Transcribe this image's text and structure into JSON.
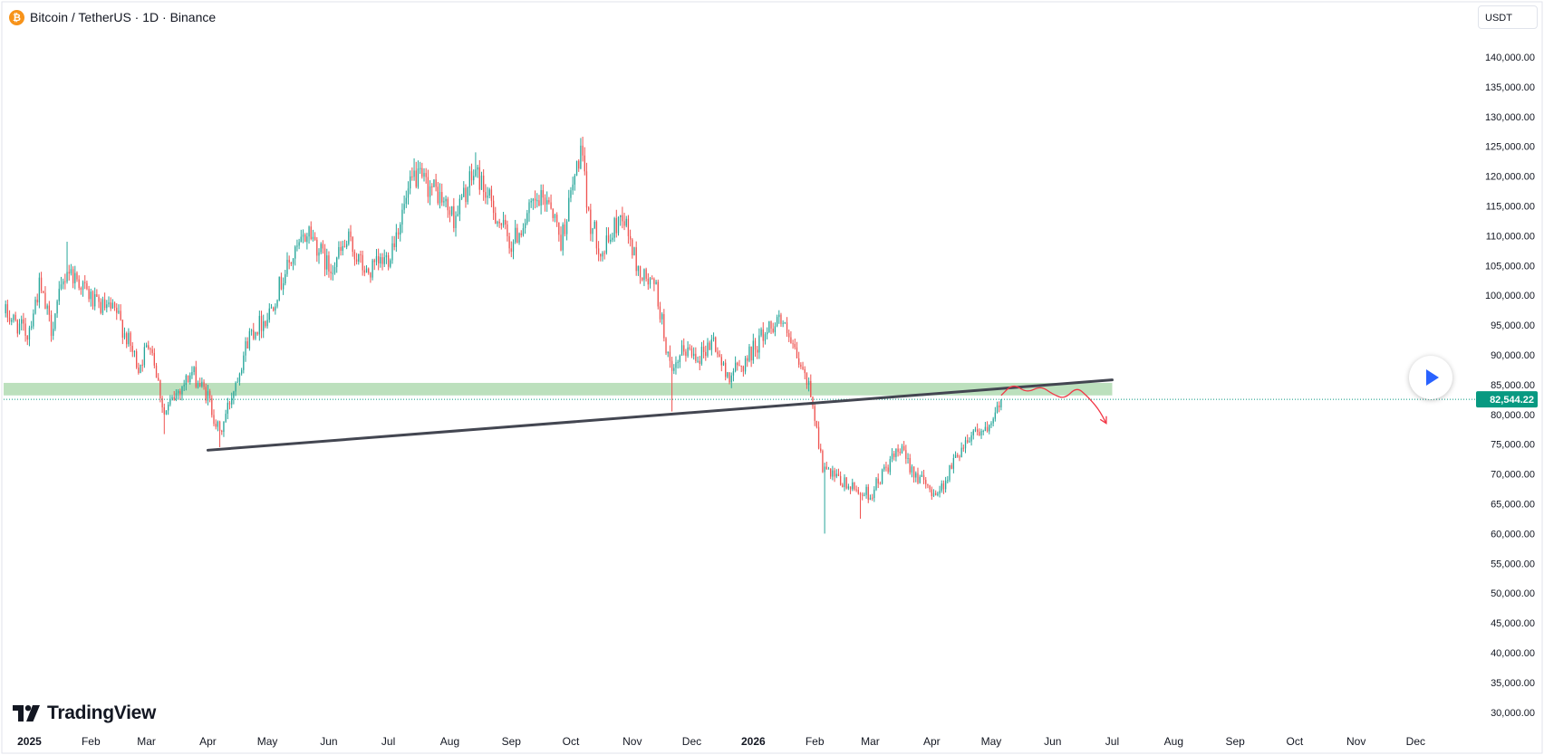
{
  "header": {
    "title": "Bitcoin / TetherUS · 1D · Binance",
    "coin_symbol": "₿"
  },
  "currency_selector": "USDT",
  "logo_text": "TradingView",
  "chart_data": {
    "type": "candlestick",
    "symbol": "Bitcoin / TetherUS",
    "interval": "1D",
    "exchange": "Binance",
    "y_axis": {
      "ticks": [
        "140,000.00",
        "135,000.00",
        "130,000.00",
        "125,000.00",
        "120,000.00",
        "115,000.00",
        "110,000.00",
        "105,000.00",
        "100,000.00",
        "95,000.00",
        "90,000.00",
        "85,000.00",
        "80,000.00",
        "75,000.00",
        "70,000.00",
        "65,000.00",
        "60,000.00",
        "55,000.00",
        "50,000.00",
        "45,000.00",
        "40,000.00",
        "35,000.00",
        "30,000.00"
      ],
      "range": [
        28000,
        143500
      ]
    },
    "x_axis": {
      "ticks": [
        {
          "label": "2025",
          "date": "2025-01-01",
          "bold": true
        },
        {
          "label": "Feb",
          "date": "2025-02-01"
        },
        {
          "label": "Mar",
          "date": "2025-03-01"
        },
        {
          "label": "Apr",
          "date": "2025-04-01"
        },
        {
          "label": "May",
          "date": "2025-05-01"
        },
        {
          "label": "Jun",
          "date": "2025-06-01"
        },
        {
          "label": "Jul",
          "date": "2025-07-01"
        },
        {
          "label": "Aug",
          "date": "2025-08-01"
        },
        {
          "label": "Sep",
          "date": "2025-09-01"
        },
        {
          "label": "Oct",
          "date": "2025-10-01"
        },
        {
          "label": "Nov",
          "date": "2025-11-01"
        },
        {
          "label": "Dec",
          "date": "2025-12-01"
        },
        {
          "label": "2026",
          "date": "2026-01-01",
          "bold": true
        },
        {
          "label": "Feb",
          "date": "2026-02-01"
        },
        {
          "label": "Mar",
          "date": "2026-03-01"
        },
        {
          "label": "Apr",
          "date": "2026-04-01"
        },
        {
          "label": "May",
          "date": "2026-05-01"
        },
        {
          "label": "Jun",
          "date": "2026-06-01"
        },
        {
          "label": "Jul",
          "date": "2026-07-01"
        },
        {
          "label": "Aug",
          "date": "2026-08-01"
        },
        {
          "label": "Sep",
          "date": "2026-09-01"
        },
        {
          "label": "Oct",
          "date": "2026-10-01"
        },
        {
          "label": "Nov",
          "date": "2026-11-01"
        },
        {
          "label": "Dec",
          "date": "2026-12-01"
        }
      ],
      "range": [
        "2024-12-19",
        "2026-12-31"
      ]
    },
    "close_path": [
      [
        "2024-12-20",
        97000
      ],
      [
        "2024-12-31",
        93500
      ],
      [
        "2025-01-06",
        101500
      ],
      [
        "2025-01-12",
        94500
      ],
      [
        "2025-01-20",
        104500
      ],
      [
        "2025-01-27",
        102000
      ],
      [
        "2025-02-03",
        98500
      ],
      [
        "2025-02-14",
        97000
      ],
      [
        "2025-02-25",
        88000
      ],
      [
        "2025-03-03",
        92500
      ],
      [
        "2025-03-10",
        80000
      ],
      [
        "2025-03-17",
        84000
      ],
      [
        "2025-03-24",
        87000
      ],
      [
        "2025-04-01",
        83000
      ],
      [
        "2025-04-07",
        76500
      ],
      [
        "2025-04-14",
        84500
      ],
      [
        "2025-04-22",
        93500
      ],
      [
        "2025-05-01",
        96500
      ],
      [
        "2025-05-10",
        104000
      ],
      [
        "2025-05-22",
        111000
      ],
      [
        "2025-06-01",
        104500
      ],
      [
        "2025-06-11",
        109000
      ],
      [
        "2025-06-20",
        103500
      ],
      [
        "2025-07-01",
        106500
      ],
      [
        "2025-07-14",
        120000
      ],
      [
        "2025-07-25",
        117500
      ],
      [
        "2025-08-03",
        113000
      ],
      [
        "2025-08-14",
        121000
      ],
      [
        "2025-08-22",
        115000
      ],
      [
        "2025-09-01",
        108500
      ],
      [
        "2025-09-12",
        115000
      ],
      [
        "2025-09-20",
        116500
      ],
      [
        "2025-09-26",
        109000
      ],
      [
        "2025-10-06",
        124500
      ],
      [
        "2025-10-10",
        113000
      ],
      [
        "2025-10-17",
        107000
      ],
      [
        "2025-10-27",
        114000
      ],
      [
        "2025-11-04",
        104000
      ],
      [
        "2025-11-13",
        101000
      ],
      [
        "2025-11-21",
        86000
      ],
      [
        "2025-11-27",
        91000
      ],
      [
        "2025-12-05",
        90000
      ],
      [
        "2025-12-12",
        92500
      ],
      [
        "2025-12-18",
        86500
      ],
      [
        "2025-12-26",
        88000
      ],
      [
        "2026-01-05",
        93000
      ],
      [
        "2026-01-14",
        96500
      ],
      [
        "2026-01-22",
        90000
      ],
      [
        "2026-01-30",
        84000
      ],
      [
        "2026-02-05",
        71000
      ],
      [
        "2026-02-10",
        69500
      ],
      [
        "2026-02-20",
        67500
      ],
      [
        "2026-03-01",
        66500
      ],
      [
        "2026-03-09",
        71000
      ],
      [
        "2026-03-16",
        74000
      ],
      [
        "2026-03-23",
        70500
      ],
      [
        "2026-03-30",
        67500
      ],
      [
        "2026-04-05",
        67000
      ],
      [
        "2026-04-14",
        73500
      ],
      [
        "2026-04-22",
        77500
      ],
      [
        "2026-04-30",
        77000
      ],
      [
        "2026-05-06",
        82544
      ]
    ],
    "highs": [
      {
        "date": "2025-01-20",
        "value": 109000
      },
      {
        "date": "2025-05-22",
        "value": 111500
      },
      {
        "date": "2025-07-14",
        "value": 123000
      },
      {
        "date": "2025-08-14",
        "value": 124000
      },
      {
        "date": "2025-10-06",
        "value": 126000
      },
      {
        "date": "2026-01-14",
        "value": 97500
      }
    ],
    "lows": [
      {
        "date": "2025-03-10",
        "value": 76700
      },
      {
        "date": "2025-04-07",
        "value": 74500
      },
      {
        "date": "2025-11-21",
        "value": 80500
      },
      {
        "date": "2026-02-06",
        "value": 60000
      },
      {
        "date": "2026-02-24",
        "value": 62500
      }
    ],
    "last_price": {
      "value": 82544.22,
      "label": "82,544.22"
    },
    "support_zone": {
      "from": "2024-12-19",
      "to": "2026-07-01",
      "low": 83200,
      "high": 85300
    },
    "trendline": {
      "start": {
        "date": "2025-04-01",
        "value": 74000
      },
      "end": {
        "date": "2026-07-01",
        "value": 85800
      }
    },
    "projection_path": [
      [
        "2026-05-06",
        83200
      ],
      [
        "2026-05-12",
        85200
      ],
      [
        "2026-05-19",
        83600
      ],
      [
        "2026-05-26",
        84800
      ],
      [
        "2026-06-01",
        83400
      ],
      [
        "2026-06-07",
        82600
      ],
      [
        "2026-06-13",
        84600
      ],
      [
        "2026-06-18",
        83200
      ],
      [
        "2026-06-24",
        81000
      ],
      [
        "2026-06-28",
        78500
      ]
    ],
    "colors": {
      "up": "#26a69a",
      "down": "#ef5350",
      "zone": "#a5d6a7",
      "trendline": "#434651",
      "projection": "#f23645",
      "price_label": "#089981",
      "axis_text": "#131722"
    },
    "grid": false
  }
}
